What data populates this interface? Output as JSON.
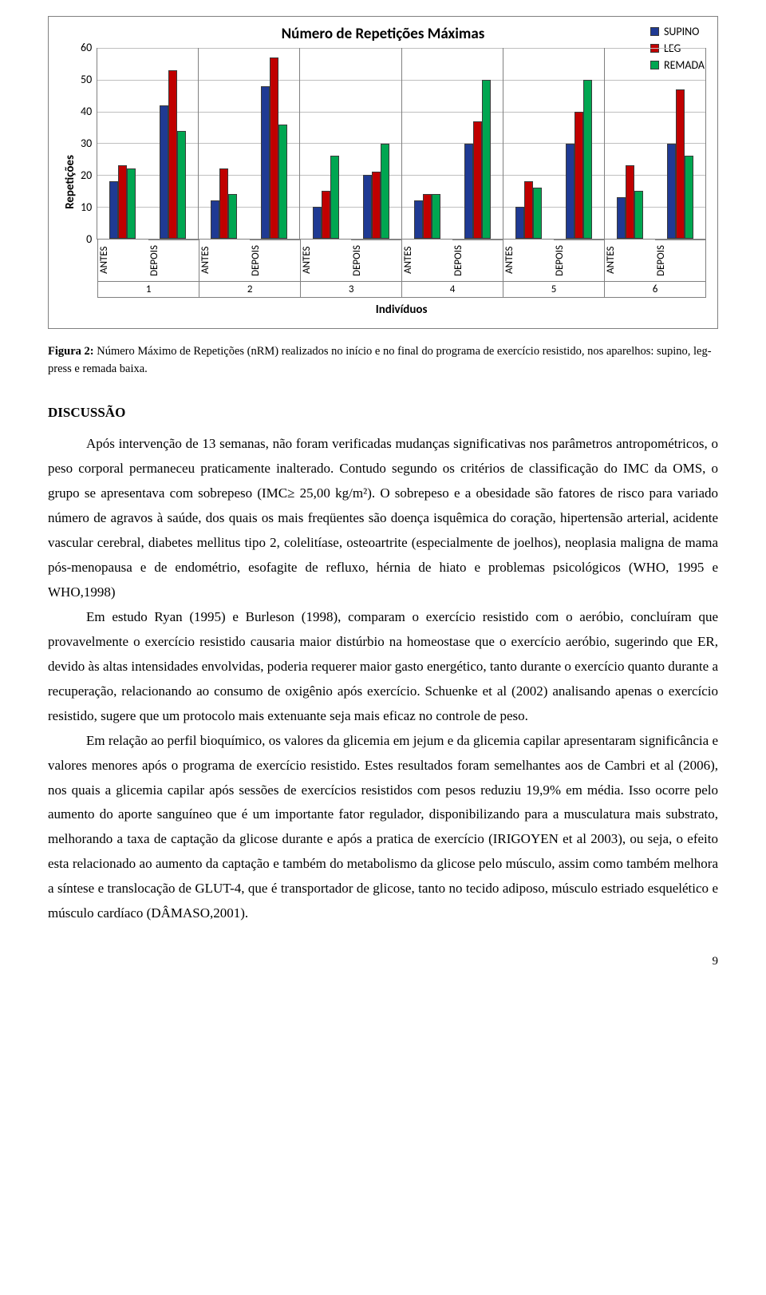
{
  "chart": {
    "type": "bar",
    "title": "Número de Repetições Máximas",
    "ylabel": "Repetições",
    "xlabel": "Indivíduos",
    "ymax": 60,
    "ytick_step": 10,
    "yticks": [
      "60",
      "50",
      "40",
      "30",
      "20",
      "10",
      "0"
    ],
    "sub_labels": [
      "ANTES",
      "DEPOIS"
    ],
    "group_labels": [
      "1",
      "2",
      "3",
      "4",
      "5",
      "6"
    ],
    "series": [
      {
        "name": "SUPINO",
        "color": "#1f3a93"
      },
      {
        "name": "LEG",
        "color": "#c00000"
      },
      {
        "name": "REMADA",
        "color": "#00a651"
      }
    ],
    "groups": [
      {
        "antes": {
          "supino": 18,
          "leg": 23,
          "remada": 22
        },
        "depois": {
          "supino": 42,
          "leg": 53,
          "remada": 34
        }
      },
      {
        "antes": {
          "supino": 12,
          "leg": 22,
          "remada": 14
        },
        "depois": {
          "supino": 48,
          "leg": 57,
          "remada": 36
        }
      },
      {
        "antes": {
          "supino": 10,
          "leg": 15,
          "remada": 26
        },
        "depois": {
          "supino": 20,
          "leg": 21,
          "remada": 30
        }
      },
      {
        "antes": {
          "supino": 12,
          "leg": 14,
          "remada": 14
        },
        "depois": {
          "supino": 30,
          "leg": 37,
          "remada": 50
        }
      },
      {
        "antes": {
          "supino": 10,
          "leg": 18,
          "remada": 16
        },
        "depois": {
          "supino": 30,
          "leg": 40,
          "remada": 50
        }
      },
      {
        "antes": {
          "supino": 13,
          "leg": 23,
          "remada": 15
        },
        "depois": {
          "supino": 30,
          "leg": 47,
          "remada": 26
        }
      }
    ],
    "background_color": "#ffffff",
    "grid_color": "#bfbfbf",
    "border_color": "#808080",
    "bar_border": "#3a3a3a",
    "title_fontsize": 19,
    "label_fontsize": 15,
    "tick_fontsize": 14
  },
  "caption": {
    "label": "Figura 2:",
    "text": " Número Máximo de Repetições (nRM) realizados no início e no final do programa de exercício resistido, nos aparelhos: supino, leg-press e remada baixa."
  },
  "section_heading": "DISCUSSÃO",
  "paragraphs": [
    "Após intervenção de 13 semanas, não foram verificadas mudanças significativas nos parâmetros antropométricos, o peso corporal permaneceu praticamente inalterado. Contudo segundo os critérios de classificação do IMC da OMS, o grupo se apresentava com sobrepeso (IMC≥ 25,00 kg/m²). O sobrepeso e a obesidade são fatores de risco para variado número de agravos à saúde, dos quais os mais freqüentes são doença isquêmica do coração, hipertensão arterial, acidente vascular cerebral, diabetes mellitus tipo 2, colelitíase, osteoartrite (especialmente de joelhos), neoplasia maligna de mama pós-menopausa e de endométrio, esofagite de refluxo, hérnia de hiato e problemas psicológicos (WHO, 1995 e WHO,1998)",
    "Em estudo Ryan (1995) e Burleson (1998), comparam o exercício resistido com o aeróbio, concluíram que provavelmente o exercício resistido causaria maior distúrbio na homeostase que o exercício aeróbio, sugerindo que ER, devido às altas intensidades envolvidas, poderia requerer maior gasto energético, tanto durante o exercício quanto durante a recuperação, relacionando ao consumo de oxigênio após exercício. Schuenke et al (2002) analisando apenas o exercício resistido, sugere que um protocolo mais extenuante seja mais eficaz no controle de peso.",
    "Em relação ao perfil bioquímico, os valores da glicemia em jejum e da glicemia capilar apresentaram significância e valores menores após o programa de exercício resistido. Estes resultados foram semelhantes aos de Cambri et al (2006), nos quais a glicemia capilar após sessões de exercícios resistidos com pesos reduziu 19,9% em média. Isso ocorre pelo aumento do aporte sanguíneo que é um importante fator regulador, disponibilizando para a musculatura mais substrato, melhorando a taxa de captação da glicose durante e após a pratica de exercício (IRIGOYEN et al 2003), ou seja, o efeito esta relacionado ao aumento da captação e também do metabolismo da glicose pelo músculo, assim como também melhora a síntese e translocação de GLUT-4, que é transportador de glicose, tanto no tecido adiposo, músculo estriado esquelético e músculo cardíaco (DÂMASO,2001)."
  ],
  "page_number": "9"
}
